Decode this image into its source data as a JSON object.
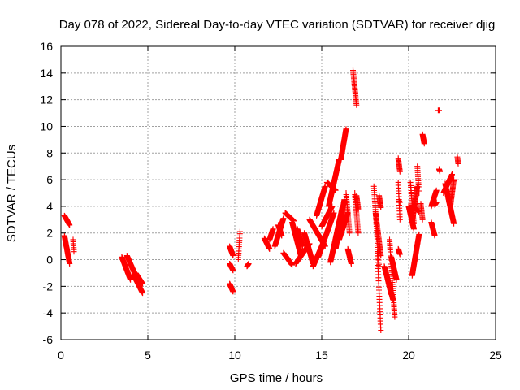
{
  "chart_data": {
    "type": "scatter",
    "title": "Day 078 of 2022, Sidereal Day-to-day VTEC variation (SDTVAR) for receiver djig",
    "xlabel": "GPS time / hours",
    "ylabel": "SDTVAR / TECUs",
    "xlim": [
      0,
      25
    ],
    "ylim": [
      -6,
      16
    ],
    "xticks": [
      0,
      5,
      10,
      15,
      20,
      25
    ],
    "yticks": [
      -6,
      -4,
      -2,
      0,
      2,
      4,
      6,
      8,
      10,
      12,
      14,
      16
    ],
    "grid": true,
    "marker": "+",
    "color": "#ff0000",
    "segments": [
      [
        0.2,
        3.3,
        0.5,
        2.6
      ],
      [
        0.2,
        1.8,
        0.5,
        -0.3
      ],
      [
        0.7,
        1.5,
        0.75,
        0.6
      ],
      [
        3.5,
        0.2,
        4.0,
        -1.5
      ],
      [
        3.8,
        0.3,
        4.3,
        -1.2
      ],
      [
        4.2,
        -1.2,
        4.7,
        -2.5
      ],
      [
        4.3,
        -1.0,
        4.7,
        -1.8
      ],
      [
        9.7,
        1.0,
        9.9,
        0.3
      ],
      [
        9.7,
        -0.3,
        9.9,
        -0.8
      ],
      [
        9.7,
        -1.8,
        9.9,
        -2.4
      ],
      [
        10.2,
        0.0,
        10.3,
        2.1
      ],
      [
        10.7,
        -0.5,
        10.8,
        -0.3
      ],
      [
        11.7,
        1.6,
        12.0,
        0.8
      ],
      [
        12.0,
        1.5,
        12.2,
        2.3
      ],
      [
        12.3,
        1.0,
        12.8,
        3.1
      ],
      [
        12.5,
        2.6,
        12.7,
        1.8
      ],
      [
        12.8,
        0.5,
        13.3,
        -0.4
      ],
      [
        12.9,
        3.5,
        13.4,
        2.9
      ],
      [
        13.3,
        2.8,
        13.8,
        0.3
      ],
      [
        13.6,
        2.3,
        13.9,
        1.0
      ],
      [
        13.5,
        -0.3,
        14.3,
        1.2
      ],
      [
        14.0,
        2.0,
        14.5,
        -0.3
      ],
      [
        14.3,
        3.0,
        15.2,
        1.0
      ],
      [
        14.5,
        -0.5,
        15.1,
        1.3
      ],
      [
        14.7,
        3.3,
        15.2,
        5.5
      ],
      [
        14.8,
        0.2,
        15.7,
        3.5
      ],
      [
        15.3,
        5.8,
        15.8,
        5.2
      ],
      [
        15.0,
        2.5,
        15.6,
        4.0
      ],
      [
        15.4,
        4.0,
        16.0,
        7.5
      ],
      [
        15.5,
        -0.2,
        16.2,
        4.0
      ],
      [
        15.8,
        0.8,
        16.3,
        4.5
      ],
      [
        16.0,
        1.5,
        16.5,
        3.5
      ],
      [
        16.1,
        7.5,
        16.4,
        9.8
      ],
      [
        16.4,
        5.0,
        16.6,
        2.0
      ],
      [
        16.5,
        0.8,
        16.7,
        -0.3
      ],
      [
        16.8,
        14.2,
        17.0,
        11.6
      ],
      [
        16.9,
        5.0,
        17.1,
        2.0
      ],
      [
        17.0,
        4.8,
        17.1,
        3.8
      ],
      [
        18.0,
        5.5,
        18.3,
        -0.5
      ],
      [
        18.1,
        3.5,
        18.4,
        0.3
      ],
      [
        18.2,
        0.5,
        18.4,
        -5.3
      ],
      [
        18.3,
        4.8,
        18.4,
        3.9
      ],
      [
        18.6,
        -0.5,
        19.1,
        -3.0
      ],
      [
        18.8,
        -1.5,
        19.0,
        -2.6
      ],
      [
        18.9,
        1.5,
        19.2,
        -4.3
      ],
      [
        19.0,
        0.2,
        19.3,
        -1.5
      ],
      [
        19.4,
        0.8,
        19.5,
        0.4
      ],
      [
        19.4,
        7.6,
        19.5,
        6.6
      ],
      [
        19.4,
        5.8,
        19.5,
        3.0
      ],
      [
        19.45,
        4.4,
        19.5,
        4.3
      ],
      [
        20.0,
        4.0,
        20.3,
        2.3
      ],
      [
        20.1,
        5.8,
        20.3,
        2.7
      ],
      [
        20.2,
        2.8,
        20.5,
        5.5
      ],
      [
        20.2,
        -1.2,
        20.6,
        1.9
      ],
      [
        20.2,
        4.1,
        20.6,
        3.6
      ],
      [
        20.5,
        7.0,
        20.6,
        5.0
      ],
      [
        20.7,
        4.2,
        20.8,
        3.0
      ],
      [
        20.8,
        9.4,
        20.9,
        8.7
      ],
      [
        21.3,
        4.0,
        21.6,
        5.2
      ],
      [
        21.3,
        2.8,
        21.5,
        1.8
      ],
      [
        21.5,
        4.1,
        21.6,
        4.3
      ],
      [
        21.7,
        11.2,
        21.75,
        11.2
      ],
      [
        21.75,
        6.8,
        21.8,
        6.6
      ],
      [
        22.0,
        5.0,
        22.5,
        6.4
      ],
      [
        22.1,
        5.7,
        22.6,
        2.7
      ],
      [
        22.4,
        4.0,
        22.6,
        6.0
      ],
      [
        22.8,
        7.7,
        22.85,
        7.2
      ]
    ]
  }
}
